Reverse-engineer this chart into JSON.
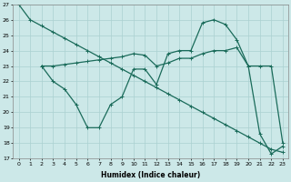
{
  "xlabel": "Humidex (Indice chaleur)",
  "xlim": [
    -0.5,
    23.5
  ],
  "ylim": [
    17,
    27
  ],
  "yticks": [
    17,
    18,
    19,
    20,
    21,
    22,
    23,
    24,
    25,
    26,
    27
  ],
  "xticks": [
    0,
    1,
    2,
    3,
    4,
    5,
    6,
    7,
    8,
    9,
    10,
    11,
    12,
    13,
    14,
    15,
    16,
    17,
    18,
    19,
    20,
    21,
    22,
    23
  ],
  "bg_color": "#cce8e8",
  "grid_color": "#aad0d0",
  "line_color": "#1a6b5a",
  "line1_x": [
    0,
    1,
    2,
    3,
    4,
    5,
    6,
    7,
    8,
    9,
    10,
    11,
    12,
    13,
    14,
    15,
    16,
    17,
    18,
    19,
    20,
    21,
    22,
    23
  ],
  "line1_y": [
    27.0,
    26.0,
    25.6,
    25.2,
    24.8,
    24.4,
    24.0,
    23.6,
    23.2,
    22.8,
    22.4,
    22.0,
    21.6,
    21.2,
    20.8,
    20.4,
    20.0,
    19.6,
    19.2,
    18.8,
    18.4,
    18.0,
    17.6,
    17.4
  ],
  "line2_x": [
    2,
    3,
    4,
    5,
    6,
    7,
    8,
    9,
    10,
    11,
    12,
    13,
    14,
    15,
    16,
    17,
    18,
    19,
    20,
    21,
    22,
    23
  ],
  "line2_y": [
    23.0,
    22.0,
    21.5,
    20.5,
    19.0,
    19.0,
    20.5,
    21.0,
    22.8,
    22.8,
    21.8,
    23.8,
    24.0,
    24.0,
    25.8,
    26.0,
    25.7,
    24.7,
    23.0,
    18.6,
    17.3,
    17.8
  ],
  "line3_x": [
    2,
    3,
    4,
    5,
    6,
    7,
    8,
    9,
    10,
    11,
    12,
    13,
    14,
    15,
    16,
    17,
    18,
    19,
    20,
    21,
    22,
    23
  ],
  "line3_y": [
    23.0,
    23.0,
    23.1,
    23.2,
    23.3,
    23.4,
    23.5,
    23.6,
    23.8,
    23.7,
    23.0,
    23.2,
    23.5,
    23.5,
    23.8,
    24.0,
    24.0,
    24.2,
    23.0,
    23.0,
    23.0,
    18.0
  ]
}
